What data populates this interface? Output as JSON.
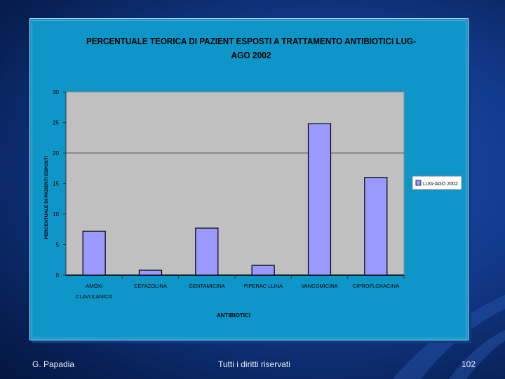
{
  "slide": {
    "author": "G. Papadia",
    "rights": "Tutti i diritti riservati",
    "page_number": "102"
  },
  "colors": {
    "background": "#123a8c",
    "chart_area": "#0f96c9",
    "plot_area": "#c0c0c0",
    "bar_fill": "#9999ff",
    "bar_stroke": "#000000",
    "text": "#000000"
  },
  "chart_data": {
    "type": "bar",
    "title_lines": [
      "PERCENTUALE TEORICA DI PAZIENT ESPOSTI A TRATTAMENTO ANTIBIOTICI LUG-",
      "AGO 2002"
    ],
    "xlabel": "ANTIBIOTICI",
    "ylabel": "PERCENTUALE DI PAZIENTI ESPOSTI",
    "categories": [
      [
        "AMOXI",
        "CLAVULANICO"
      ],
      [
        "CEFAZOLINA"
      ],
      [
        "GENTAMICINA"
      ],
      [
        "PIPERAC LLINA"
      ],
      [
        "VANCOMICINA"
      ],
      [
        "CIPROFLOXACINA"
      ]
    ],
    "series": [
      {
        "name": "LUG-AGO 2002",
        "values": [
          7.2,
          0.8,
          7.7,
          1.6,
          24.8,
          16.0
        ]
      }
    ],
    "ylim": [
      0,
      30
    ],
    "yticks": [
      0,
      5,
      10,
      15,
      20,
      25,
      30
    ],
    "gridlines": [
      20
    ],
    "legend_position": "right"
  }
}
